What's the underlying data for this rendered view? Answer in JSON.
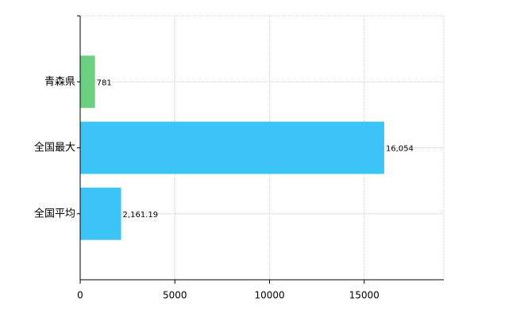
{
  "chart_data": {
    "type": "barh",
    "categories": [
      "青森県",
      "全国最大",
      "全国平均"
    ],
    "values": [
      781,
      16054,
      2161.19
    ],
    "value_labels": [
      "781",
      "16,054",
      "2,161.19"
    ],
    "colors": [
      "#6cd080",
      "#3cc4f6",
      "#3cc4f6"
    ],
    "xlim": [
      0,
      19200
    ],
    "xticks": [
      0,
      5000,
      10000,
      15000
    ],
    "grid": true
  }
}
